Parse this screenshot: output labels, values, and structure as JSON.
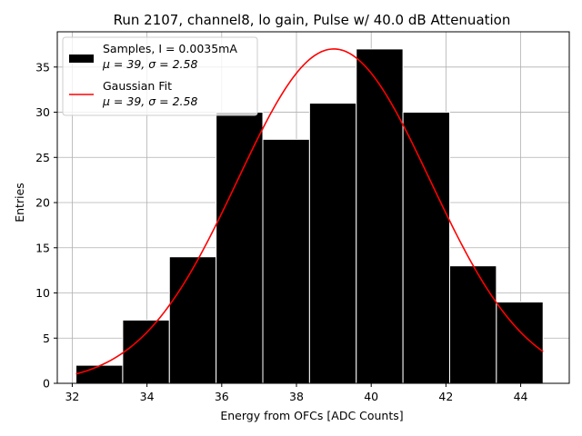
{
  "chart_data": {
    "type": "bar",
    "title": "Run 2107, channel8, lo gain, Pulse w/ 40.0 dB Attenuation",
    "xlabel": "Energy from OFCs [ADC Counts]",
    "ylabel": "Entries",
    "xlim": [
      31.6,
      45.3
    ],
    "ylim": [
      0,
      38.9
    ],
    "xticks": [
      32,
      34,
      36,
      38,
      40,
      42,
      44
    ],
    "yticks": [
      0,
      5,
      10,
      15,
      20,
      25,
      30,
      35
    ],
    "grid": true,
    "bin_edges": [
      32.1,
      33.35,
      34.6,
      35.85,
      37.1,
      38.35,
      39.6,
      40.85,
      42.1,
      43.35,
      44.6
    ],
    "counts": [
      2,
      7,
      14,
      30,
      27,
      31,
      37,
      30,
      13,
      9
    ],
    "fit": {
      "mu": 39.0,
      "sigma": 2.58,
      "amplitude": 37.0,
      "x_range": [
        32.1,
        44.6
      ]
    },
    "legend": {
      "position": "top-left",
      "entries": [
        {
          "name": "samples",
          "line1": "Samples, I = 0.0035mA",
          "line2": "μ = 39, σ = 2.58",
          "color": "#000000"
        },
        {
          "name": "fit",
          "line1": "Gaussian Fit",
          "line2": "μ = 39, σ = 2.58",
          "color": "#ff0000"
        }
      ]
    }
  }
}
